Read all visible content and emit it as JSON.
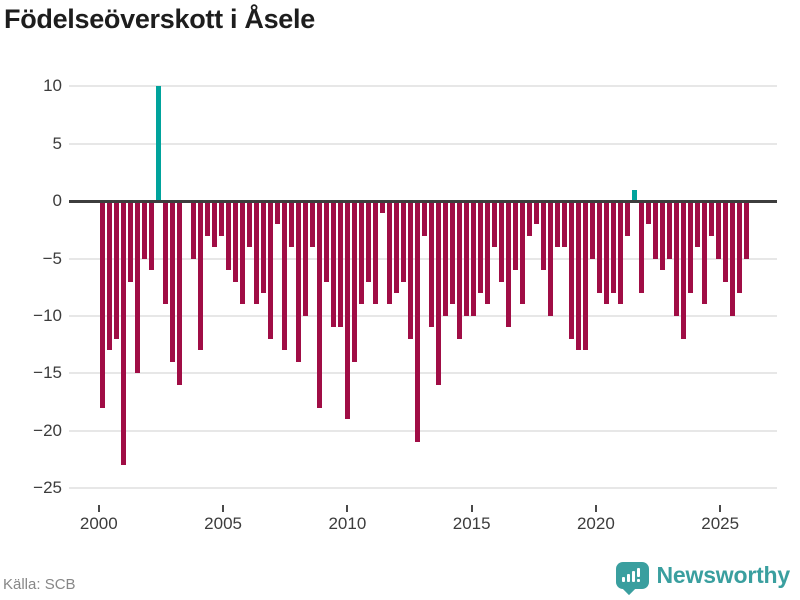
{
  "title": "Födelseöverskott i Åsele",
  "source": "Källa: SCB",
  "brand": {
    "name": "Newsworthy"
  },
  "colors": {
    "negative_bar": "#a00d45",
    "positive_bar": "#00a39c",
    "brand_teal": "#3a9f9f",
    "grid": "#e7e7e7",
    "zero_line": "#3d3d3d",
    "axis_text": "#3c3c3c",
    "muted_text": "#878787",
    "title_text": "#1d1d1d"
  },
  "chart_data": {
    "type": "bar",
    "title": "Födelseöverskott i Åsele",
    "xlabel": "",
    "ylabel": "",
    "grid": "horizontal",
    "legend": "none",
    "ylim": [
      -26,
      11
    ],
    "x_range_years_approx": [
      2000,
      2026
    ],
    "y_ticks": [
      {
        "value": 10,
        "label": "10"
      },
      {
        "value": 5,
        "label": "5"
      },
      {
        "value": 0,
        "label": "0"
      },
      {
        "value": -5,
        "label": "−5"
      },
      {
        "value": -10,
        "label": "−10"
      },
      {
        "value": -15,
        "label": "−15"
      },
      {
        "value": -20,
        "label": "−20"
      },
      {
        "value": -25,
        "label": "−25"
      }
    ],
    "x_ticks": [
      {
        "year": 2000,
        "label": "2000"
      },
      {
        "year": 2005,
        "label": "2005"
      },
      {
        "year": 2010,
        "label": "2010"
      },
      {
        "year": 2015,
        "label": "2015"
      },
      {
        "year": 2020,
        "label": "2020"
      },
      {
        "year": 2025,
        "label": "2025"
      }
    ],
    "values": [
      -18,
      -13,
      -12,
      -23,
      -7,
      -15,
      -5,
      -6,
      10,
      -9,
      -14,
      -16,
      0,
      -5,
      -13,
      -3,
      -4,
      -3,
      -6,
      -7,
      -9,
      -4,
      -9,
      -8,
      -12,
      -2,
      -13,
      -4,
      -14,
      -10,
      -4,
      -18,
      -7,
      -11,
      -11,
      -19,
      -14,
      -9,
      -7,
      -9,
      -1,
      -9,
      -8,
      -7,
      -12,
      -21,
      -3,
      -11,
      -16,
      -10,
      -9,
      -12,
      -10,
      -10,
      -8,
      -9,
      -4,
      -7,
      -11,
      -6,
      -9,
      -3,
      -2,
      -6,
      -10,
      -4,
      -4,
      -12,
      -13,
      -13,
      -5,
      -8,
      -9,
      -8,
      -9,
      -3,
      1,
      -8,
      -2,
      -5,
      -6,
      -5,
      -10,
      -12,
      -8,
      -4,
      -9,
      -3,
      -5,
      -7,
      -10,
      -8,
      -5
    ]
  }
}
